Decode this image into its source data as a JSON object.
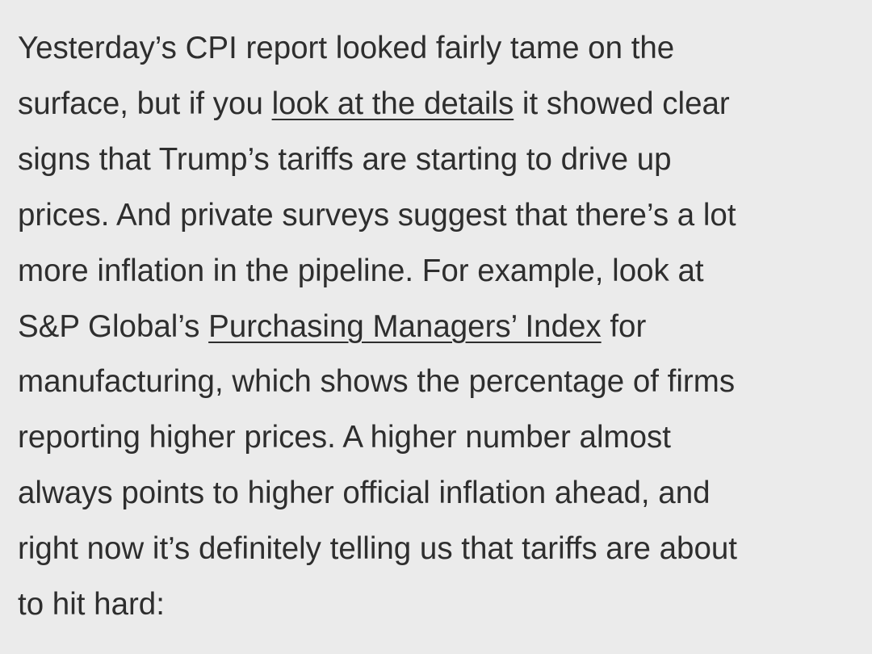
{
  "paragraph": {
    "l0": "Yesterday’s CPI report looked fairly tame on the",
    "l1a": "surface, but if you ",
    "l1link": "look at the details",
    "l1b": " it showed clear",
    "l2": "signs that Trump’s tariffs are starting to drive up",
    "l3": "prices. And private surveys suggest that there’s a lot",
    "l4": "more inflation in the pipeline. For example, look at",
    "l5a": "S&P Global’s ",
    "l5link": "Purchasing Managers’ Index",
    "l5b": " for",
    "l6": "manufacturing, which shows the percentage of firms",
    "l7": "reporting higher prices. A higher number almost",
    "l8": "always points to higher official inflation ahead, and",
    "l9": "right now it’s definitely telling us that tariffs are about",
    "l10": "to hit hard:"
  }
}
